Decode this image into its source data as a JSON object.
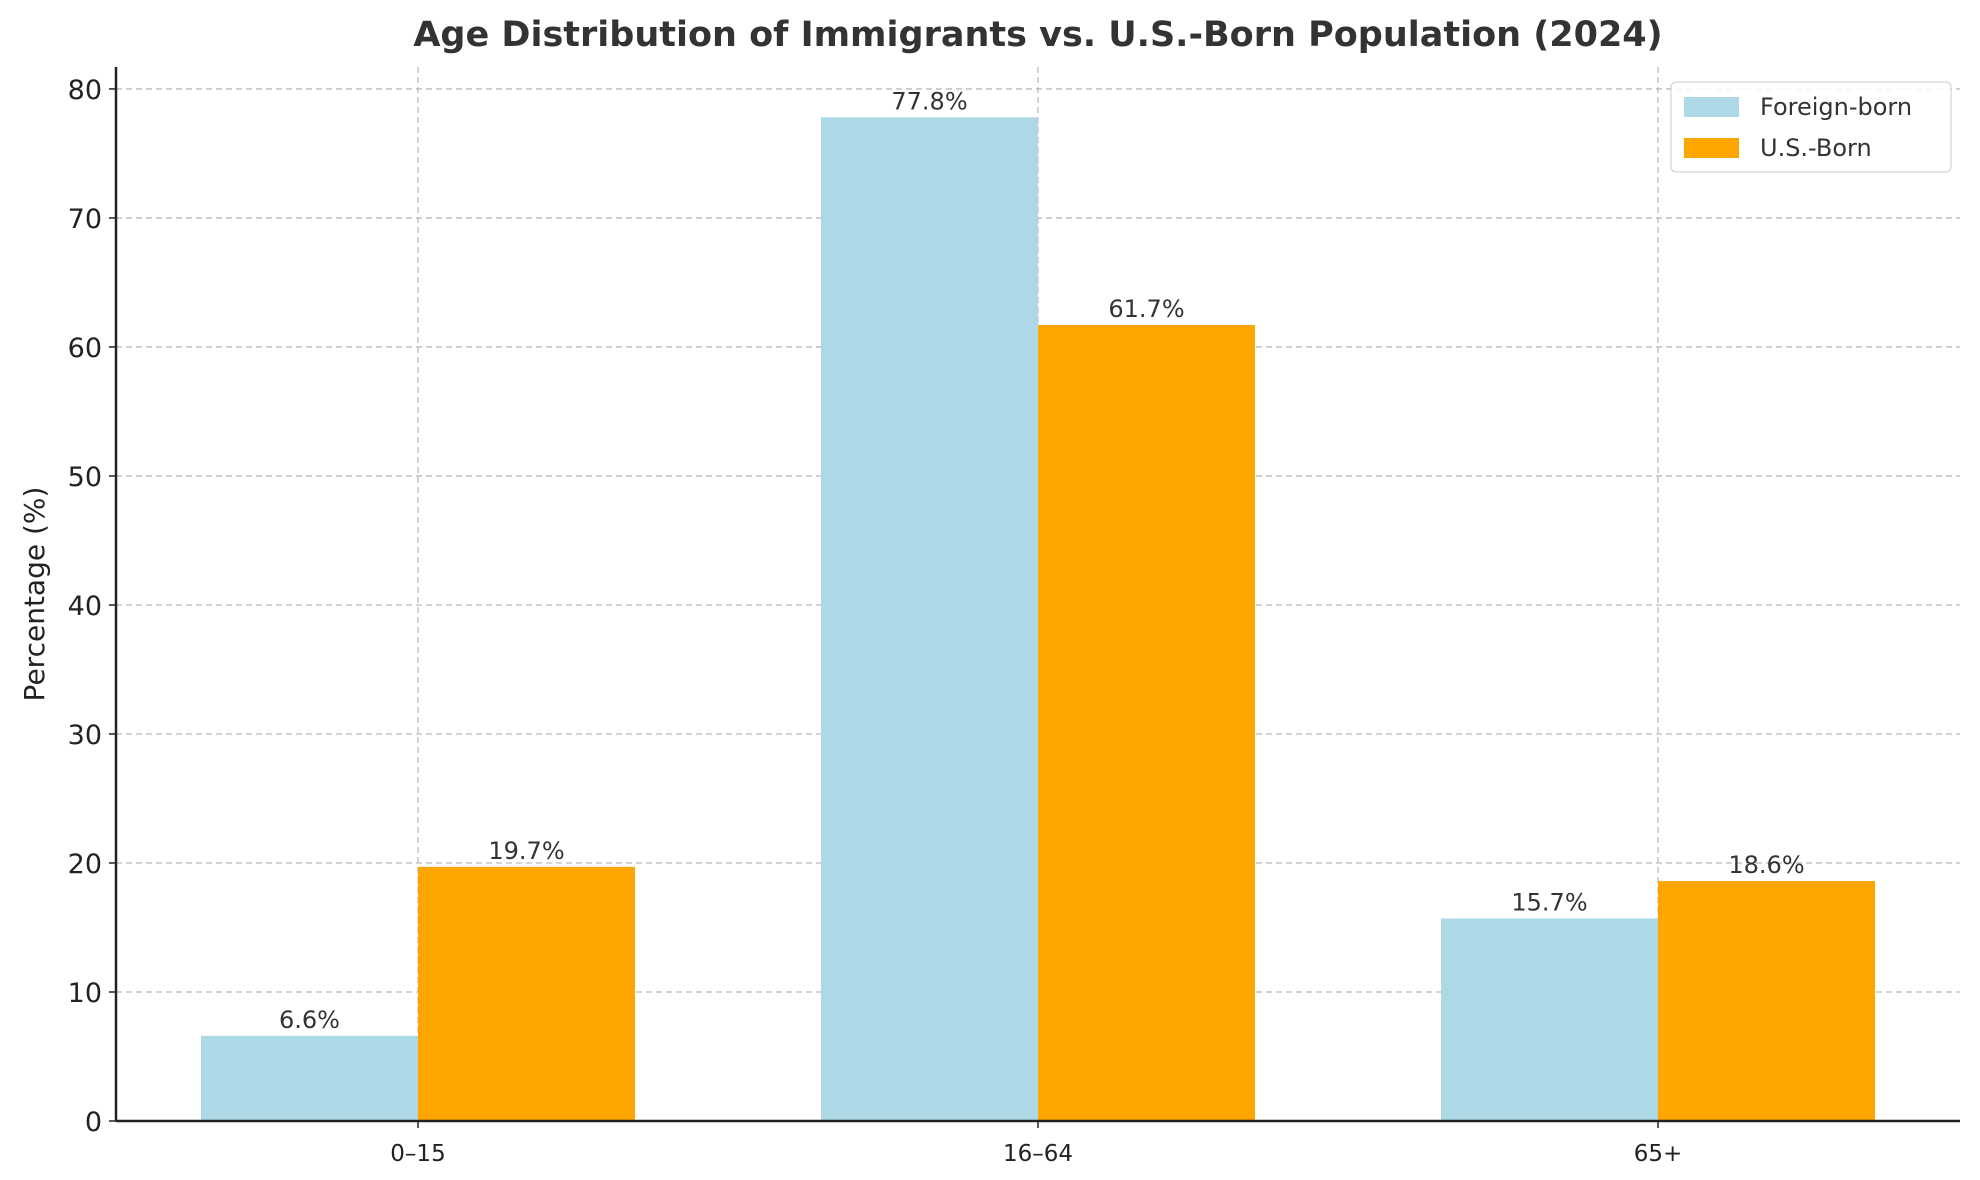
{
  "chart_data": {
    "type": "bar",
    "title": "Age Distribution of Immigrants vs. U.S.-Born Population (2024)",
    "xlabel": "",
    "ylabel": "Percentage (%)",
    "categories": [
      "0–15",
      "16–64",
      "65+"
    ],
    "series": [
      {
        "name": "Foreign-born",
        "values": [
          6.6,
          77.8,
          15.7
        ],
        "labels": [
          "6.6%",
          "77.8%",
          "15.7%"
        ],
        "color": "#add8e6"
      },
      {
        "name": "U.S.-Born",
        "values": [
          19.7,
          61.7,
          18.6
        ],
        "labels": [
          "19.7%",
          "61.7%",
          "18.6%"
        ],
        "color": "#ffa500"
      }
    ],
    "ylim": [
      0,
      81.7
    ],
    "yticks": [
      0,
      10,
      20,
      30,
      40,
      50,
      60,
      70,
      80
    ],
    "grid": true,
    "legend": "top-right"
  }
}
